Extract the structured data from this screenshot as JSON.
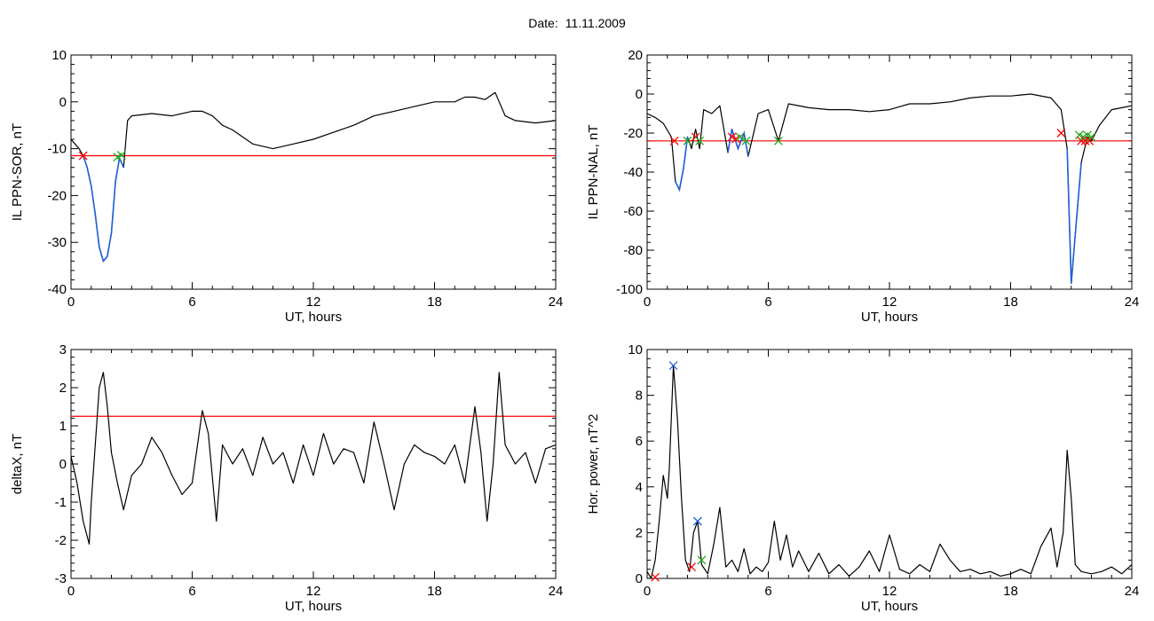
{
  "header": {
    "date_label": "Date:",
    "date_value": "11.11.2009"
  },
  "colors": {
    "threshold": "#ff0000",
    "highlight": "#1f5fd8",
    "trace": "#000000",
    "marker_red": "#ff0000",
    "marker_green": "#22aa22",
    "marker_blue": "#1f5fd8"
  },
  "chart_data": [
    {
      "id": "sor",
      "type": "line",
      "xlabel": "UT, hours",
      "ylabel": "IL PPN-SOR, nT",
      "xlim": [
        0,
        24
      ],
      "ylim": [
        -40,
        10
      ],
      "xticks": [
        0,
        6,
        12,
        18,
        24
      ],
      "yticks": [
        10,
        0,
        -10,
        -20,
        -30,
        -40
      ],
      "threshold": -11.5,
      "grid": false,
      "series": [
        {
          "role": "signal",
          "x": [
            0,
            0.2,
            0.4,
            0.6,
            0.8,
            1.0,
            1.2,
            1.4,
            1.6,
            1.8,
            2.0,
            2.2,
            2.4,
            2.6,
            2.8,
            3,
            4,
            5,
            6,
            6.5,
            7,
            7.5,
            8,
            9,
            10,
            11,
            12,
            13,
            14,
            15,
            16,
            17,
            18,
            19,
            19.5,
            20,
            20.5,
            21,
            21.5,
            22,
            23,
            24
          ],
          "y": [
            -8,
            -9,
            -10,
            -11.5,
            -14,
            -18,
            -24,
            -31,
            -34,
            -33,
            -28,
            -17,
            -12,
            -14,
            -4,
            -3,
            -2.5,
            -3,
            -2,
            -2,
            -3,
            -5,
            -6,
            -9,
            -10,
            -9,
            -8,
            -6.5,
            -5,
            -3,
            -2,
            -1,
            0,
            0,
            1,
            1,
            0.5,
            2,
            -3,
            -4,
            -4.5,
            -4
          ]
        }
      ],
      "highlight_range": [
        0.6,
        2.6
      ],
      "markers": [
        {
          "x": 0.6,
          "y": -11.5,
          "color": "red"
        },
        {
          "x": 2.3,
          "y": -11.8,
          "color": "green"
        },
        {
          "x": 2.5,
          "y": -11.4,
          "color": "green"
        }
      ]
    },
    {
      "id": "nal",
      "type": "line",
      "xlabel": "UT, hours",
      "ylabel": "IL PPN-NAL, nT",
      "xlim": [
        0,
        24
      ],
      "ylim": [
        -100,
        20
      ],
      "xticks": [
        0,
        6,
        12,
        18,
        24
      ],
      "yticks": [
        20,
        0,
        -20,
        -40,
        -60,
        -80,
        -100
      ],
      "threshold": -24,
      "grid": false,
      "series": [
        {
          "role": "signal",
          "x": [
            0,
            0.4,
            0.8,
            1.2,
            1.4,
            1.6,
            1.8,
            2.0,
            2.2,
            2.4,
            2.6,
            2.8,
            3.2,
            3.6,
            4.0,
            4.2,
            4.5,
            4.8,
            5.0,
            5.5,
            6.0,
            6.5,
            7,
            8,
            9,
            10,
            11,
            12,
            13,
            14,
            15,
            16,
            17,
            18,
            19,
            20,
            20.5,
            20.8,
            21.0,
            21.2,
            21.5,
            21.8,
            22.0,
            22.4,
            23,
            24
          ],
          "y": [
            -10,
            -12,
            -15,
            -22,
            -45,
            -49,
            -38,
            -22,
            -28,
            -18,
            -28,
            -8,
            -10,
            -6,
            -30,
            -18,
            -28,
            -20,
            -32,
            -10,
            -8,
            -24,
            -5,
            -7,
            -8,
            -8,
            -9,
            -8,
            -5,
            -5,
            -4,
            -2,
            -1,
            -1,
            0,
            -2,
            -8,
            -28,
            -97,
            -72,
            -35,
            -22,
            -24,
            -16,
            -8,
            -6
          ]
        }
      ],
      "highlight_ranges": [
        [
          1.4,
          2.0
        ],
        [
          4.0,
          5.0
        ],
        [
          20.8,
          21.6
        ]
      ],
      "markers": [
        {
          "x": 1.35,
          "y": -24,
          "color": "red"
        },
        {
          "x": 2.0,
          "y": -24,
          "color": "green"
        },
        {
          "x": 2.4,
          "y": -22,
          "color": "red"
        },
        {
          "x": 2.6,
          "y": -24,
          "color": "green"
        },
        {
          "x": 4.2,
          "y": -22,
          "color": "red"
        },
        {
          "x": 4.4,
          "y": -23,
          "color": "red"
        },
        {
          "x": 4.6,
          "y": -22,
          "color": "green"
        },
        {
          "x": 4.9,
          "y": -24,
          "color": "green"
        },
        {
          "x": 6.5,
          "y": -24,
          "color": "green"
        },
        {
          "x": 20.5,
          "y": -20,
          "color": "red"
        },
        {
          "x": 21.4,
          "y": -21,
          "color": "green"
        },
        {
          "x": 21.5,
          "y": -24,
          "color": "red"
        },
        {
          "x": 21.6,
          "y": -22,
          "color": "green"
        },
        {
          "x": 21.7,
          "y": -24,
          "color": "red"
        },
        {
          "x": 21.8,
          "y": -21,
          "color": "green"
        },
        {
          "x": 21.9,
          "y": -24,
          "color": "red"
        },
        {
          "x": 22.0,
          "y": -22,
          "color": "green"
        }
      ]
    },
    {
      "id": "deltax",
      "type": "line",
      "xlabel": "UT, hours",
      "ylabel": "deltaX, nT",
      "xlim": [
        0,
        24
      ],
      "ylim": [
        -3,
        3
      ],
      "xticks": [
        0,
        6,
        12,
        18,
        24
      ],
      "yticks": [
        3,
        2,
        1,
        0,
        -1,
        -2,
        -3
      ],
      "threshold": 1.25,
      "grid": false,
      "series": [
        {
          "role": "signal",
          "x": [
            0,
            0.3,
            0.6,
            0.9,
            1.0,
            1.2,
            1.4,
            1.6,
            1.8,
            2.0,
            2.3,
            2.6,
            3.0,
            3.5,
            4.0,
            4.5,
            5.0,
            5.5,
            6.0,
            6.5,
            6.8,
            7.2,
            7.5,
            8,
            8.5,
            9,
            9.5,
            10,
            10.5,
            11,
            11.5,
            12,
            12.5,
            13,
            13.5,
            14,
            14.5,
            15,
            15.5,
            16,
            16.5,
            17,
            17.5,
            18,
            18.5,
            19,
            19.5,
            20,
            20.3,
            20.6,
            20.9,
            21.2,
            21.5,
            22,
            22.5,
            23,
            23.5,
            24
          ],
          "y": [
            0.2,
            -0.5,
            -1.5,
            -2.1,
            -1.0,
            0.5,
            2.0,
            2.4,
            1.5,
            0.3,
            -0.5,
            -1.2,
            -0.3,
            0.0,
            0.7,
            0.3,
            -0.3,
            -0.8,
            -0.5,
            1.4,
            0.8,
            -1.5,
            0.5,
            0.0,
            0.4,
            -0.3,
            0.7,
            0.0,
            0.3,
            -0.5,
            0.5,
            -0.3,
            0.8,
            0.0,
            0.4,
            0.3,
            -0.5,
            1.1,
            0.0,
            -1.2,
            0.0,
            0.5,
            0.3,
            0.2,
            0.0,
            0.5,
            -0.5,
            1.5,
            0.3,
            -1.5,
            0.0,
            2.4,
            0.5,
            0.0,
            0.3,
            -0.5,
            0.4,
            0.5
          ]
        }
      ]
    },
    {
      "id": "power",
      "type": "line",
      "xlabel": "UT, hours",
      "ylabel": "Hor. power, nT^2",
      "xlim": [
        0,
        24
      ],
      "ylim": [
        0,
        10
      ],
      "xticks": [
        0,
        6,
        12,
        18,
        24
      ],
      "yticks": [
        10,
        8,
        6,
        4,
        2,
        0
      ],
      "grid": false,
      "series": [
        {
          "role": "signal",
          "x": [
            0,
            0.2,
            0.4,
            0.6,
            0.8,
            1.0,
            1.1,
            1.3,
            1.5,
            1.7,
            1.9,
            2.1,
            2.3,
            2.5,
            2.7,
            3.0,
            3.3,
            3.6,
            3.9,
            4.2,
            4.5,
            4.8,
            5.1,
            5.4,
            5.7,
            6.0,
            6.3,
            6.6,
            6.9,
            7.2,
            7.5,
            8,
            8.5,
            9,
            9.5,
            10,
            10.5,
            11,
            11.5,
            12,
            12.5,
            13,
            13.5,
            14,
            14.5,
            15,
            15.5,
            16,
            16.5,
            17,
            17.5,
            18,
            18.5,
            19,
            19.5,
            20,
            20.3,
            20.6,
            20.8,
            21.0,
            21.2,
            21.5,
            22,
            22.5,
            23,
            23.5,
            24
          ],
          "y": [
            0.3,
            0.0,
            0.8,
            2.5,
            4.5,
            3.5,
            4.8,
            9.3,
            7.0,
            3.5,
            0.8,
            0.3,
            2.0,
            2.5,
            0.6,
            0.2,
            1.5,
            3.1,
            0.5,
            0.8,
            0.3,
            1.3,
            0.2,
            0.5,
            0.3,
            0.7,
            2.5,
            0.8,
            1.9,
            0.5,
            1.2,
            0.3,
            1.1,
            0.2,
            0.6,
            0.1,
            0.5,
            1.2,
            0.3,
            1.9,
            0.4,
            0.2,
            0.6,
            0.3,
            1.5,
            0.8,
            0.3,
            0.4,
            0.2,
            0.3,
            0.1,
            0.2,
            0.4,
            0.2,
            1.4,
            2.2,
            0.5,
            2.0,
            5.6,
            3.5,
            0.6,
            0.3,
            0.2,
            0.3,
            0.5,
            0.2,
            0.6
          ]
        }
      ],
      "markers": [
        {
          "x": 0.4,
          "y": 0.05,
          "color": "red"
        },
        {
          "x": 1.3,
          "y": 9.3,
          "color": "blue"
        },
        {
          "x": 2.2,
          "y": 0.5,
          "color": "red"
        },
        {
          "x": 2.5,
          "y": 2.5,
          "color": "blue"
        },
        {
          "x": 2.7,
          "y": 0.8,
          "color": "green"
        }
      ]
    }
  ]
}
